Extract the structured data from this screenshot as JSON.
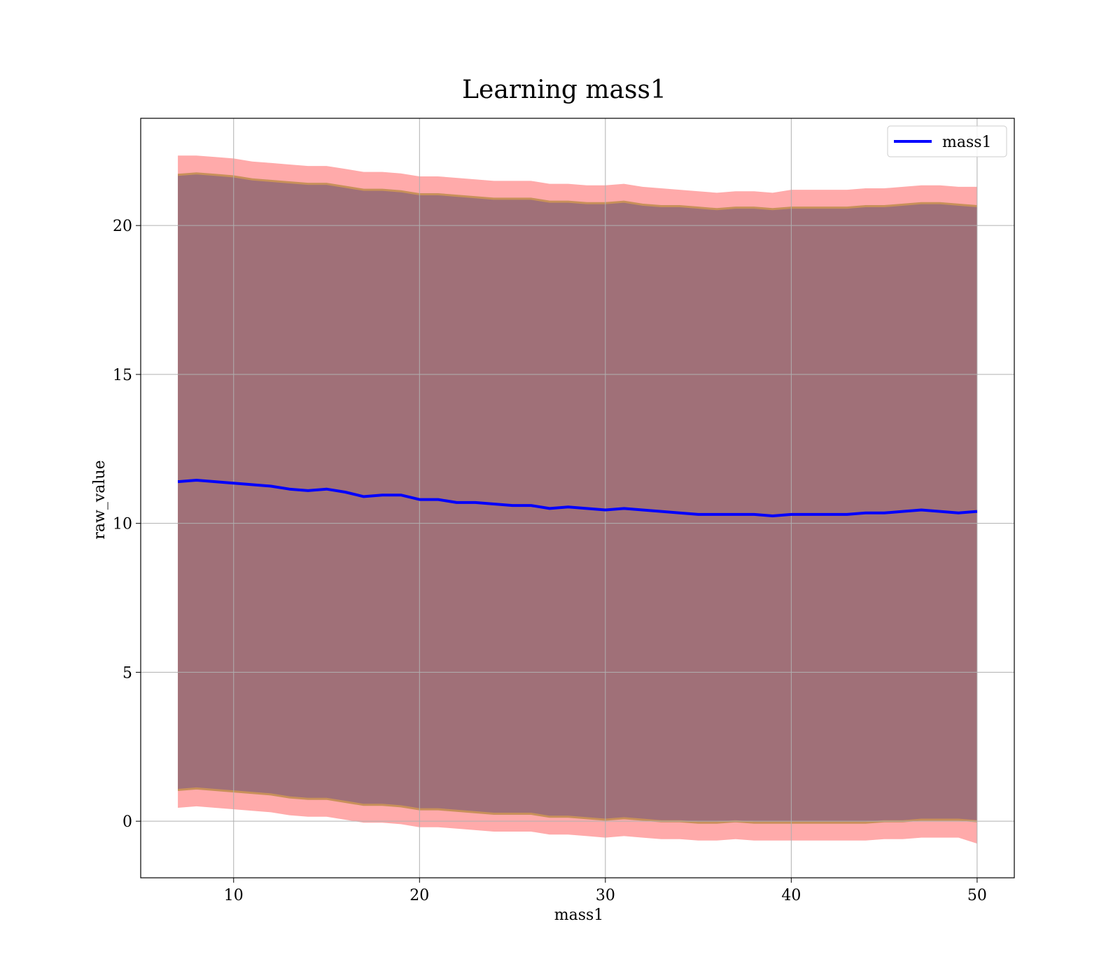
{
  "chart_data": {
    "type": "area",
    "title": "Learning mass1",
    "xlabel": "mass1",
    "ylabel": "raw_value",
    "xlim": [
      5,
      52
    ],
    "ylim": [
      -1.9,
      23.6
    ],
    "xticks": [
      10,
      20,
      30,
      40,
      50
    ],
    "yticks": [
      0,
      5,
      10,
      15,
      20
    ],
    "grid": true,
    "legend": {
      "position": "top-right",
      "entries": [
        "mass1"
      ]
    },
    "colors": {
      "line": "#0000ff",
      "outer_band": "#ffaaaa",
      "inner_band": "#a07078",
      "band_edge": "#c8905a",
      "grid": "#b0b0b0"
    },
    "series": [
      {
        "name": "mass1",
        "x": [
          7,
          8,
          9,
          10,
          11,
          12,
          13,
          14,
          15,
          16,
          17,
          18,
          19,
          20,
          21,
          22,
          23,
          24,
          25,
          26,
          27,
          28,
          29,
          30,
          31,
          32,
          33,
          34,
          35,
          36,
          37,
          38,
          39,
          40,
          41,
          42,
          43,
          44,
          45,
          46,
          47,
          48,
          49,
          50
        ],
        "y": [
          11.4,
          11.45,
          11.4,
          11.35,
          11.3,
          11.25,
          11.15,
          11.1,
          11.15,
          11.05,
          10.9,
          10.95,
          10.95,
          10.8,
          10.8,
          10.7,
          10.7,
          10.65,
          10.6,
          10.6,
          10.5,
          10.55,
          10.5,
          10.45,
          10.5,
          10.45,
          10.4,
          10.35,
          10.3,
          10.3,
          10.3,
          10.3,
          10.25,
          10.3,
          10.3,
          10.3,
          10.3,
          10.35,
          10.35,
          10.4,
          10.45,
          10.4,
          10.35,
          10.4
        ],
        "inner_upper": [
          21.7,
          21.75,
          21.7,
          21.65,
          21.55,
          21.5,
          21.45,
          21.4,
          21.4,
          21.3,
          21.2,
          21.2,
          21.15,
          21.05,
          21.05,
          21.0,
          20.95,
          20.9,
          20.9,
          20.9,
          20.8,
          20.8,
          20.75,
          20.75,
          20.8,
          20.7,
          20.65,
          20.65,
          20.6,
          20.55,
          20.6,
          20.6,
          20.55,
          20.6,
          20.6,
          20.6,
          20.6,
          20.65,
          20.65,
          20.7,
          20.75,
          20.75,
          20.7,
          20.65
        ],
        "outer_upper": [
          22.35,
          22.35,
          22.3,
          22.25,
          22.15,
          22.1,
          22.05,
          22.0,
          22.0,
          21.9,
          21.8,
          21.8,
          21.75,
          21.65,
          21.65,
          21.6,
          21.55,
          21.5,
          21.5,
          21.5,
          21.4,
          21.4,
          21.35,
          21.35,
          21.4,
          21.3,
          21.25,
          21.2,
          21.15,
          21.1,
          21.15,
          21.15,
          21.1,
          21.2,
          21.2,
          21.2,
          21.2,
          21.25,
          21.25,
          21.3,
          21.35,
          21.35,
          21.3,
          21.3
        ],
        "inner_lower": [
          1.05,
          1.1,
          1.05,
          1.0,
          0.95,
          0.9,
          0.8,
          0.75,
          0.75,
          0.65,
          0.55,
          0.55,
          0.5,
          0.4,
          0.4,
          0.35,
          0.3,
          0.25,
          0.25,
          0.25,
          0.15,
          0.15,
          0.1,
          0.05,
          0.1,
          0.05,
          0.0,
          0.0,
          -0.05,
          -0.05,
          0.0,
          -0.05,
          -0.05,
          -0.05,
          -0.05,
          -0.05,
          -0.05,
          -0.05,
          0.0,
          0.0,
          0.05,
          0.05,
          0.05,
          0.0
        ],
        "outer_lower": [
          0.45,
          0.5,
          0.45,
          0.4,
          0.35,
          0.3,
          0.2,
          0.15,
          0.15,
          0.05,
          -0.05,
          -0.05,
          -0.1,
          -0.2,
          -0.2,
          -0.25,
          -0.3,
          -0.35,
          -0.35,
          -0.35,
          -0.45,
          -0.45,
          -0.5,
          -0.55,
          -0.5,
          -0.55,
          -0.6,
          -0.6,
          -0.65,
          -0.65,
          -0.6,
          -0.65,
          -0.65,
          -0.65,
          -0.65,
          -0.65,
          -0.65,
          -0.65,
          -0.6,
          -0.6,
          -0.55,
          -0.55,
          -0.55,
          -0.75
        ]
      }
    ]
  }
}
